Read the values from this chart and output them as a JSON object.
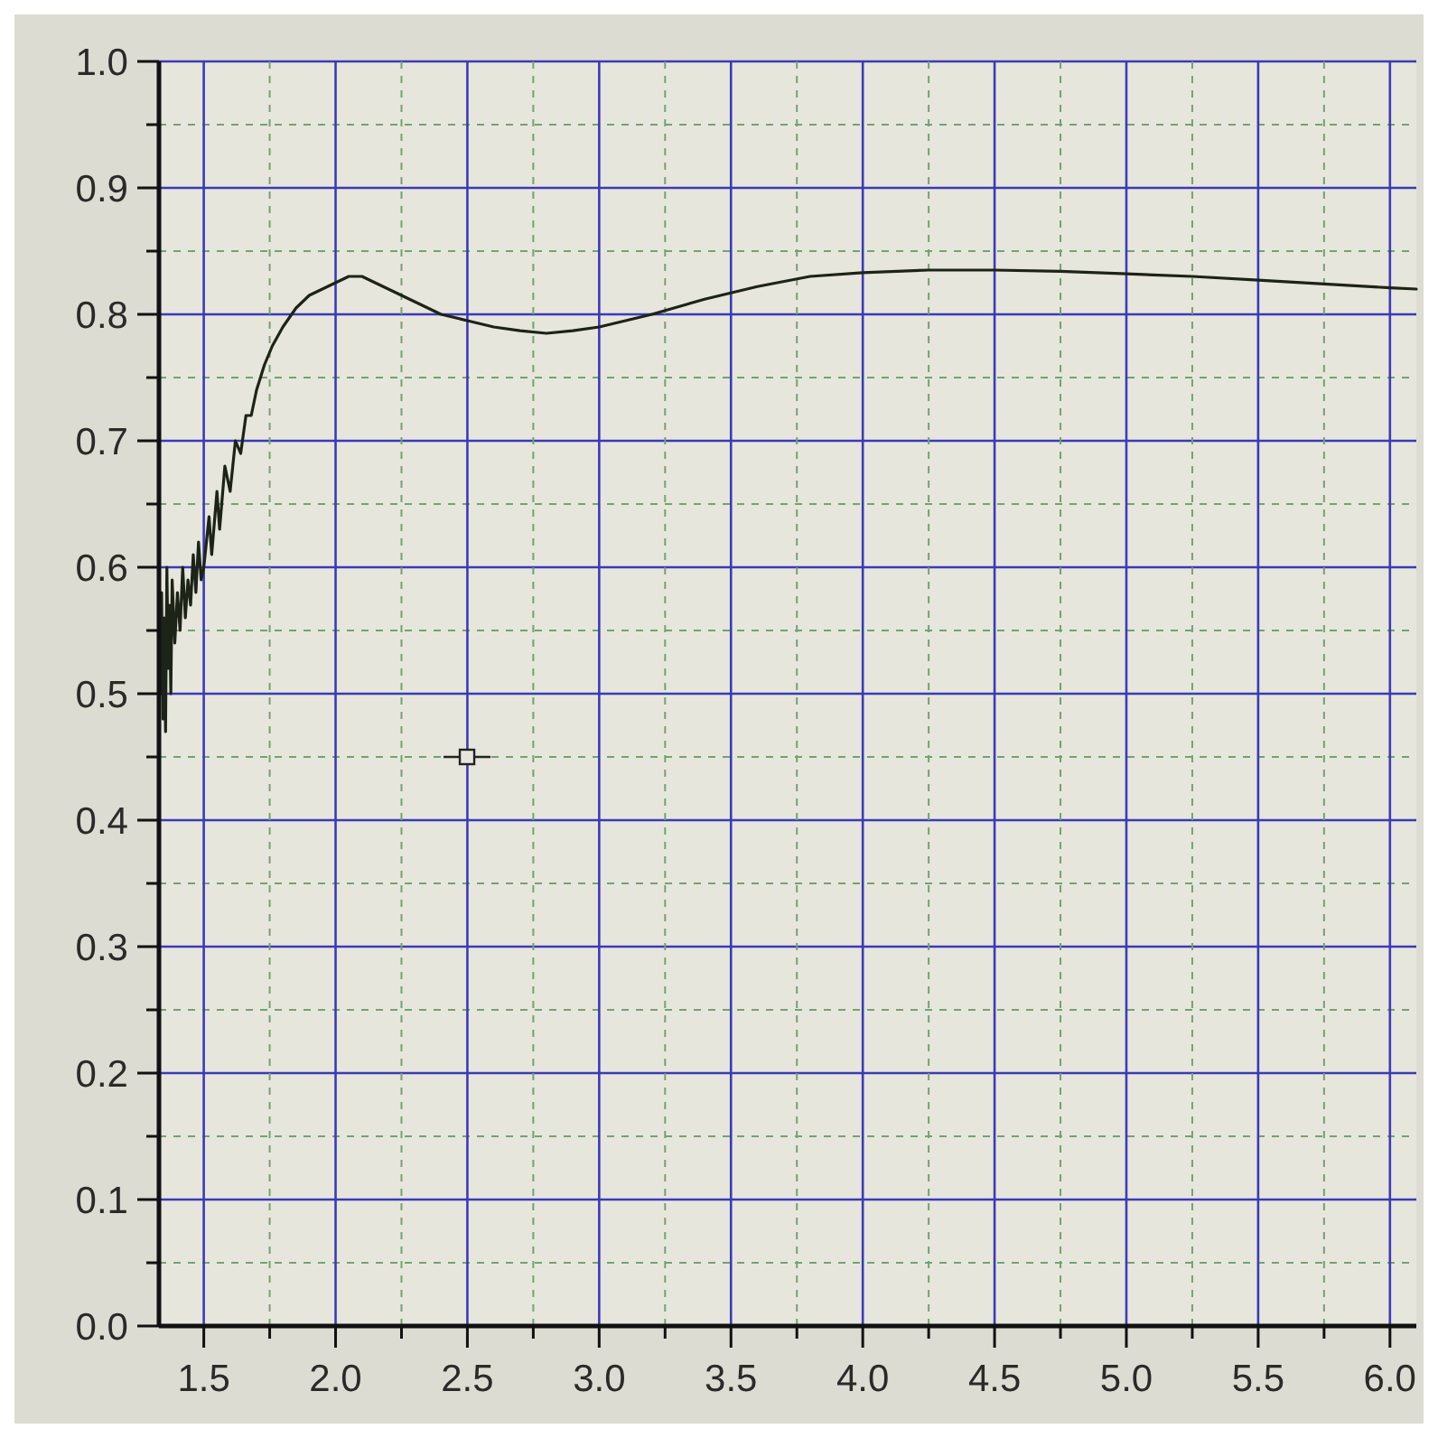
{
  "chart_data": {
    "type": "line",
    "x": [
      1.33,
      1.335,
      1.34,
      1.345,
      1.35,
      1.355,
      1.36,
      1.365,
      1.37,
      1.375,
      1.38,
      1.39,
      1.4,
      1.41,
      1.42,
      1.43,
      1.44,
      1.45,
      1.46,
      1.47,
      1.48,
      1.49,
      1.5,
      1.52,
      1.53,
      1.55,
      1.56,
      1.58,
      1.6,
      1.62,
      1.64,
      1.66,
      1.68,
      1.7,
      1.73,
      1.76,
      1.8,
      1.85,
      1.9,
      1.95,
      2.0,
      2.05,
      2.1,
      2.15,
      2.2,
      2.3,
      2.4,
      2.5,
      2.6,
      2.7,
      2.8,
      2.9,
      3.0,
      3.2,
      3.4,
      3.6,
      3.8,
      4.0,
      4.25,
      4.5,
      4.75,
      5.0,
      5.25,
      5.5,
      5.75,
      6.0,
      6.1
    ],
    "series": [
      {
        "color": "#1c2418",
        "values": [
          0.55,
          0.5,
          0.58,
          0.48,
          0.56,
          0.47,
          0.6,
          0.52,
          0.57,
          0.5,
          0.59,
          0.54,
          0.58,
          0.55,
          0.6,
          0.56,
          0.59,
          0.57,
          0.61,
          0.58,
          0.62,
          0.59,
          0.6,
          0.64,
          0.61,
          0.66,
          0.63,
          0.68,
          0.66,
          0.7,
          0.69,
          0.72,
          0.72,
          0.74,
          0.76,
          0.775,
          0.79,
          0.805,
          0.815,
          0.82,
          0.825,
          0.83,
          0.83,
          0.825,
          0.82,
          0.81,
          0.8,
          0.795,
          0.79,
          0.787,
          0.785,
          0.787,
          0.79,
          0.8,
          0.812,
          0.822,
          0.83,
          0.833,
          0.835,
          0.835,
          0.834,
          0.832,
          0.83,
          0.827,
          0.824,
          0.821,
          0.82
        ]
      }
    ],
    "xlim": [
      1.33,
      6.1
    ],
    "ylim": [
      0,
      1
    ],
    "xticks": [
      1.5,
      {
        "value": 1.75,
        "label": null
      },
      {
        "value": 2,
        "label": "2.0"
      },
      {
        "value": 2.25,
        "label": null
      },
      2.5,
      {
        "value": 2.75,
        "label": null
      },
      {
        "value": 3,
        "label": "3.0"
      },
      {
        "value": 3.25,
        "label": null
      },
      3.5,
      {
        "value": 3.75,
        "label": null
      },
      {
        "value": 4,
        "label": "4.0"
      },
      {
        "value": 4.25,
        "label": null
      },
      4.5,
      {
        "value": 4.75,
        "label": null
      },
      {
        "value": 5,
        "label": "5.0"
      },
      {
        "value": 5.25,
        "label": null
      },
      5.5,
      {
        "value": 5.75,
        "label": null
      },
      {
        "value": 6,
        "label": "6.0"
      }
    ],
    "yticks": [
      {
        "value": 0,
        "label": "0.0"
      },
      {
        "value": 0.05,
        "label": null
      },
      0.1,
      {
        "value": 0.15,
        "label": null
      },
      0.2,
      {
        "value": 0.25,
        "label": null
      },
      0.3,
      {
        "value": 0.35,
        "label": null
      },
      0.4,
      {
        "value": 0.45,
        "label": null
      },
      0.5,
      {
        "value": 0.55,
        "label": null
      },
      0.6,
      {
        "value": 0.65,
        "label": null
      },
      0.7,
      {
        "value": 0.75,
        "label": null
      },
      0.8,
      {
        "value": 0.85,
        "label": null
      },
      0.9,
      {
        "value": 0.95,
        "label": null
      },
      {
        "value": 1,
        "label": "1.0"
      }
    ],
    "grid": true
  }
}
